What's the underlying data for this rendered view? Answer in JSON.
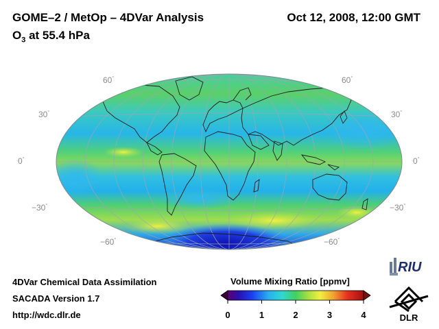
{
  "header": {
    "title": "GOME–2 / MetOp – 4DVar Analysis",
    "species": "O",
    "species_sub": "3",
    "level": " at 55.4 hPa",
    "datetime": "Oct 12, 2008, 12:00 GMT"
  },
  "map": {
    "projection": "Mollweide / Hammer global",
    "lat_labels_left": [
      "60",
      "30",
      "0",
      "−30",
      "−60"
    ],
    "lat_labels_right": [
      "60",
      "30",
      "0",
      "−30",
      "−60"
    ],
    "degree_symbol": "°"
  },
  "footer": {
    "line1": "4DVar Chemical Data Assimilation",
    "line2": "SACADA Version 1.7",
    "line3": "http://wdc.dlr.de"
  },
  "colorbar": {
    "title": "Volume Mixing Ratio [ppmv]",
    "ticks": [
      "0",
      "1",
      "2",
      "3",
      "4"
    ],
    "min": 0,
    "max": 4
  },
  "logos": {
    "riu": "RIU",
    "dlr": "DLR"
  },
  "colors": {
    "ocean_band": "#22b0e6",
    "low": "#1a2bd6",
    "mid": "#30c8d8",
    "green": "#5fd25f",
    "yellow": "#e8e84a"
  }
}
